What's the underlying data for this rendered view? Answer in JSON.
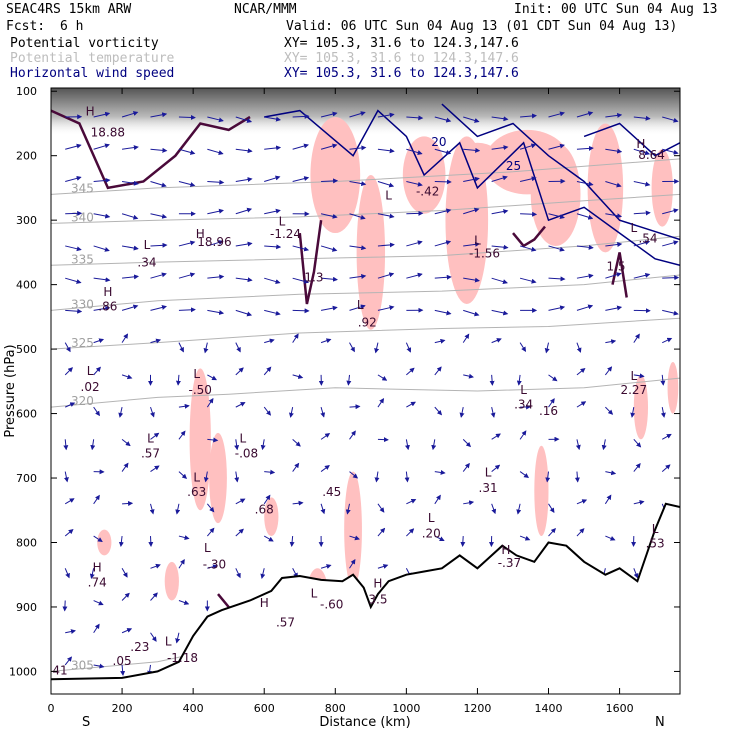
{
  "header": {
    "model": "SEAC4RS 15km ARW",
    "org": "NCAR/MMM",
    "init": "Init: 00 UTC Sun 04 Aug 13",
    "fcst_label": "Fcst:",
    "fcst_value": "6 h",
    "valid": "Valid: 06 UTC Sun 04 Aug 13 (01 CDT Sun 04 Aug 13)",
    "fields": [
      {
        "name": "Potential vorticity",
        "xy": "XY= 105.3, 31.6 to 124.3,147.6",
        "color": "#000000"
      },
      {
        "name": "Potential temperature",
        "xy": "XY= 105.3, 31.6 to 124.3,147.6",
        "color": "#bdbdbd"
      },
      {
        "name": "Horizontal wind speed",
        "xy": "XY= 105.3, 31.6 to 124.3,147.6",
        "color": "#000080"
      }
    ]
  },
  "colors": {
    "pv_fill": "#ffc0c0",
    "pv_line": "#4a0a3a",
    "theta": "#b4b4b4",
    "wind_contour": "#000080",
    "vector": "#1a1a9a",
    "terrain": "#000000"
  },
  "chart_data": {
    "type": "cross-section",
    "xlabel": "Distance (km)",
    "ylabel": "Pressure (hPa)",
    "xlim": [
      0,
      1770
    ],
    "ylim": [
      1035,
      95
    ],
    "x_ticks": [
      0,
      200,
      400,
      600,
      800,
      1000,
      1200,
      1400,
      1600
    ],
    "y_ticks": [
      100,
      200,
      300,
      400,
      500,
      600,
      700,
      800,
      900,
      1000
    ],
    "end_labels": {
      "left": "S",
      "right": "N"
    },
    "theta_contours": [
      {
        "label": "305",
        "points": [
          [
            0,
            1000
          ],
          [
            300,
            985
          ],
          [
            600,
            950
          ],
          [
            900,
            905
          ]
        ]
      },
      {
        "label": "320",
        "points": [
          [
            0,
            590
          ],
          [
            300,
            575
          ],
          [
            500,
            570
          ],
          [
            800,
            560
          ],
          [
            1200,
            565
          ],
          [
            1500,
            560
          ],
          [
            1770,
            545
          ]
        ]
      },
      {
        "label": "325",
        "points": [
          [
            0,
            500
          ],
          [
            300,
            490
          ],
          [
            700,
            475
          ],
          [
            1100,
            468
          ],
          [
            1400,
            465
          ],
          [
            1770,
            452
          ]
        ]
      },
      {
        "label": "330",
        "points": [
          [
            0,
            440
          ],
          [
            300,
            425
          ],
          [
            700,
            415
          ],
          [
            1100,
            410
          ],
          [
            1500,
            400
          ],
          [
            1770,
            385
          ]
        ]
      },
      {
        "label": "335",
        "points": [
          [
            0,
            370
          ],
          [
            300,
            365
          ],
          [
            700,
            360
          ],
          [
            1100,
            355
          ],
          [
            1500,
            340
          ],
          [
            1770,
            325
          ]
        ]
      },
      {
        "label": "340",
        "points": [
          [
            0,
            305
          ],
          [
            300,
            300
          ],
          [
            700,
            295
          ],
          [
            1100,
            285
          ],
          [
            1500,
            270
          ],
          [
            1770,
            260
          ]
        ]
      },
      {
        "label": "345",
        "points": [
          [
            0,
            260
          ],
          [
            300,
            250
          ],
          [
            800,
            240
          ],
          [
            1300,
            225
          ],
          [
            1770,
            205
          ]
        ]
      }
    ],
    "pv_labels": [
      {
        "t": "H",
        "x": 110,
        "p": 138
      },
      {
        "t": "18.88",
        "x": 160,
        "p": 170
      },
      {
        "t": "H",
        "x": 420,
        "p": 328
      },
      {
        "t": "18.96",
        "x": 460,
        "p": 340
      },
      {
        "t": "L",
        "x": 270,
        "p": 345
      },
      {
        "t": ".34",
        "x": 270,
        "p": 372
      },
      {
        "t": "H",
        "x": 160,
        "p": 418
      },
      {
        "t": ".86",
        "x": 160,
        "p": 440
      },
      {
        "t": "L",
        "x": 650,
        "p": 308
      },
      {
        "t": "-1.24",
        "x": 660,
        "p": 328
      },
      {
        "t": "1.3",
        "x": 740,
        "p": 395
      },
      {
        "t": "L",
        "x": 870,
        "p": 438
      },
      {
        "t": ".92",
        "x": 890,
        "p": 465
      },
      {
        "t": "L",
        "x": 950,
        "p": 268
      },
      {
        "t": "-.42",
        "x": 1060,
        "p": 262
      },
      {
        "t": "L",
        "x": 1200,
        "p": 338
      },
      {
        "t": "-1.56",
        "x": 1220,
        "p": 358
      },
      {
        "t": "H",
        "x": 1660,
        "p": 188
      },
      {
        "t": "8.64",
        "x": 1690,
        "p": 205
      },
      {
        "t": "L",
        "x": 1640,
        "p": 318
      },
      {
        "t": ".54",
        "x": 1680,
        "p": 335
      },
      {
        "t": "1.5",
        "x": 1590,
        "p": 378
      },
      {
        "t": "L",
        "x": 110,
        "p": 540
      },
      {
        "t": ".02",
        "x": 110,
        "p": 565
      },
      {
        "t": "L",
        "x": 410,
        "p": 545
      },
      {
        "t": "-.50",
        "x": 420,
        "p": 570
      },
      {
        "t": "L",
        "x": 280,
        "p": 645
      },
      {
        "t": ".57",
        "x": 280,
        "p": 668
      },
      {
        "t": "L",
        "x": 540,
        "p": 645
      },
      {
        "t": "-.08",
        "x": 550,
        "p": 668
      },
      {
        "t": "L",
        "x": 410,
        "p": 705
      },
      {
        "t": ".63",
        "x": 410,
        "p": 728
      },
      {
        "t": ".68",
        "x": 600,
        "p": 755
      },
      {
        "t": ".45",
        "x": 790,
        "p": 728
      },
      {
        "t": "L",
        "x": 1230,
        "p": 698
      },
      {
        "t": ".31",
        "x": 1230,
        "p": 722
      },
      {
        "t": "L",
        "x": 1330,
        "p": 570
      },
      {
        "t": ".34",
        "x": 1330,
        "p": 592
      },
      {
        "t": ".16",
        "x": 1400,
        "p": 602
      },
      {
        "t": "L",
        "x": 1640,
        "p": 548
      },
      {
        "t": "2.27",
        "x": 1640,
        "p": 570
      },
      {
        "t": "L",
        "x": 1070,
        "p": 768
      },
      {
        "t": ".20",
        "x": 1070,
        "p": 792
      },
      {
        "t": "H",
        "x": 1280,
        "p": 818
      },
      {
        "t": "-.37",
        "x": 1290,
        "p": 838
      },
      {
        "t": "L",
        "x": 1700,
        "p": 785
      },
      {
        "t": ".53",
        "x": 1700,
        "p": 808
      },
      {
        "t": "L",
        "x": 440,
        "p": 815
      },
      {
        "t": "-.30",
        "x": 460,
        "p": 840
      },
      {
        "t": "H",
        "x": 130,
        "p": 845
      },
      {
        "t": ".74",
        "x": 130,
        "p": 868
      },
      {
        "t": "L",
        "x": 740,
        "p": 885
      },
      {
        "t": "-.60",
        "x": 790,
        "p": 902
      },
      {
        "t": "H",
        "x": 920,
        "p": 870
      },
      {
        "t": "3.5",
        "x": 920,
        "p": 895
      },
      {
        "t": "H",
        "x": 600,
        "p": 900
      },
      {
        "t": ".57",
        "x": 660,
        "p": 930
      },
      {
        "t": "L",
        "x": 330,
        "p": 960
      },
      {
        "t": "-1.18",
        "x": 370,
        "p": 985
      },
      {
        "t": ".23",
        "x": 250,
        "p": 968
      },
      {
        "t": ".41",
        "x": 20,
        "p": 1005
      },
      {
        "t": ".05",
        "x": 200,
        "p": 990
      }
    ],
    "wind_labels": [
      {
        "t": "20",
        "x": 1070,
        "p": 185
      },
      {
        "t": "25",
        "x": 1280,
        "p": 222
      }
    ]
  }
}
